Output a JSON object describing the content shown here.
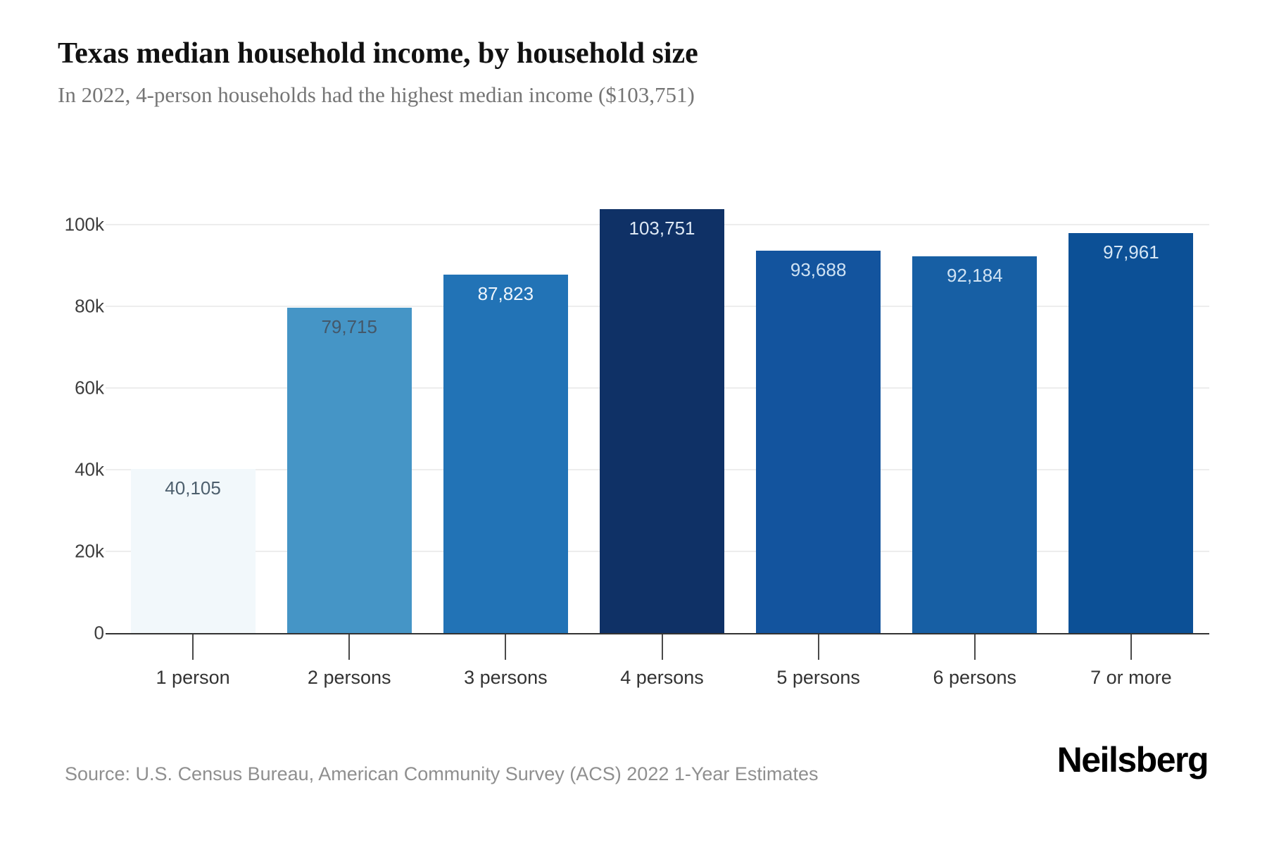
{
  "header": {
    "title": "Texas median household income, by household size",
    "subtitle": "In 2022, 4-person households had the highest median income ($103,751)"
  },
  "chart_data": {
    "type": "bar",
    "title": "Texas median household income, by household size",
    "subtitle": "In 2022, 4-person households had the highest median income ($103,751)",
    "categories": [
      "1 person",
      "2 persons",
      "3 persons",
      "4 persons",
      "5 persons",
      "6 persons",
      "7 or more"
    ],
    "values": [
      40105,
      79715,
      87823,
      103751,
      93688,
      92184,
      97961
    ],
    "value_labels": [
      "40,105",
      "79,715",
      "87,823",
      "103,751",
      "93,688",
      "92,184",
      "97,961"
    ],
    "bar_colors": [
      "#f2f8fb",
      "#4595c6",
      "#2273b6",
      "#0f3166",
      "#13549e",
      "#175fa4",
      "#0c5096"
    ],
    "value_label_colors": [
      "#4d5f6d",
      "#44586a",
      "#eef5fc",
      "#dde8f4",
      "#cfe2f3",
      "#cfe2f3",
      "#d5e6f5"
    ],
    "xlabel": "",
    "ylabel": "",
    "ylim": [
      0,
      107000
    ],
    "grid": "horizontal-light",
    "legend_position": "none",
    "yticks": [
      {
        "value": 0,
        "label": "0"
      },
      {
        "value": 20000,
        "label": "20k"
      },
      {
        "value": 40000,
        "label": "40k"
      },
      {
        "value": 60000,
        "label": "60k"
      },
      {
        "value": 80000,
        "label": "80k"
      },
      {
        "value": 100000,
        "label": "100k"
      }
    ]
  },
  "footer": {
    "source": "Source: U.S. Census Bureau, American Community Survey (ACS) 2022 1-Year Estimates",
    "logo": "Neilsberg"
  }
}
